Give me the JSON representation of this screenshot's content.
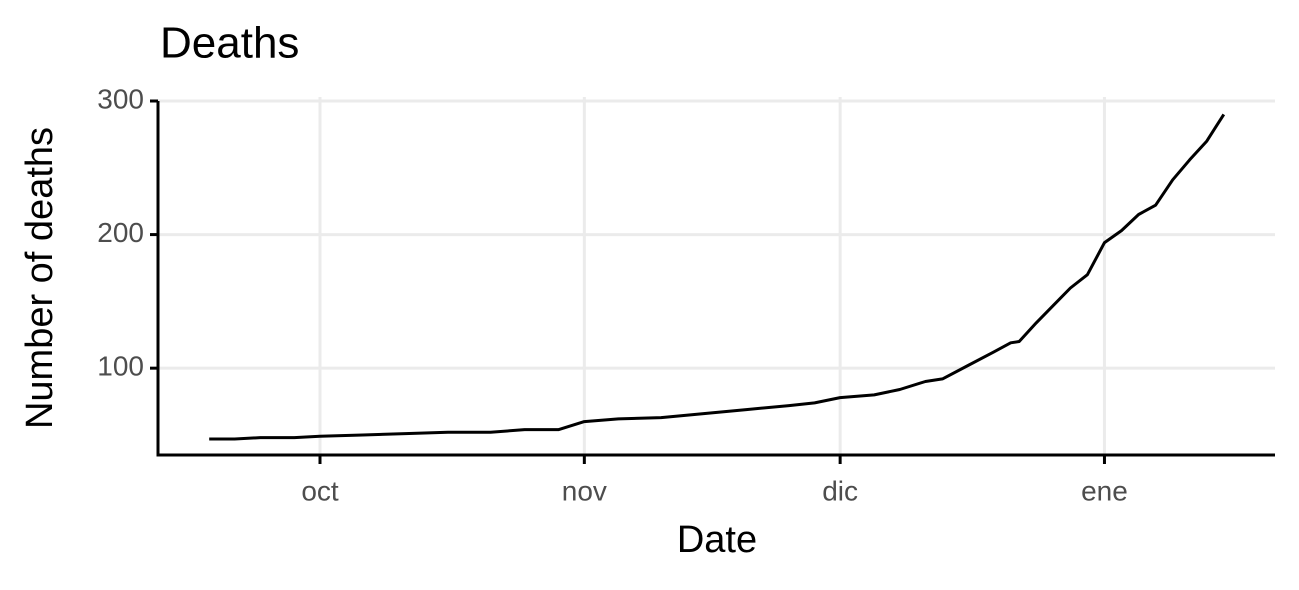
{
  "chart_data": {
    "type": "line",
    "title": "Deaths",
    "xlabel": "Date",
    "ylabel": "Number of deaths",
    "x": [
      -13,
      -10,
      -7,
      -3,
      0,
      5,
      10,
      15,
      20,
      24,
      28,
      31,
      35,
      40,
      45,
      50,
      55,
      58,
      61,
      65,
      68,
      71,
      73,
      76,
      79,
      81,
      82,
      84,
      86,
      88,
      90,
      92,
      94,
      96,
      98,
      100,
      102,
      104,
      105,
      106
    ],
    "values": [
      47,
      47,
      48,
      48,
      49,
      50,
      51,
      52,
      52,
      54,
      54,
      60,
      62,
      63,
      66,
      69,
      72,
      74,
      78,
      80,
      84,
      90,
      92,
      102,
      112,
      119,
      120,
      134,
      147,
      160,
      170,
      194,
      203,
      215,
      222,
      241,
      256,
      270,
      280,
      290
    ],
    "color": "#000000",
    "xlim": [
      -19,
      112
    ],
    "xticks": [
      {
        "value": 0,
        "label": "oct"
      },
      {
        "value": 31,
        "label": "nov"
      },
      {
        "value": 61,
        "label": "dic"
      },
      {
        "value": 92,
        "label": "ene"
      }
    ],
    "ylim": [
      35,
      300
    ],
    "yticks": [
      100,
      200,
      300
    ],
    "grid": true
  }
}
